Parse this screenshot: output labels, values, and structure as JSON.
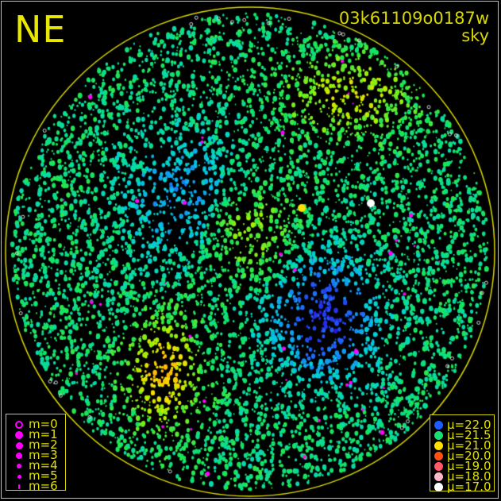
{
  "header": {
    "direction_label": "NE",
    "frame_id": "03k61109o0187w",
    "mode": "sky"
  },
  "colors": {
    "frame": "#d8d800",
    "text": "#e0e000",
    "star_marker": "#ff00ff"
  },
  "magnitude_legend": [
    {
      "label": "m=0",
      "style": "open"
    },
    {
      "label": "m=1"
    },
    {
      "label": "m=2"
    },
    {
      "label": "m=3"
    },
    {
      "label": "m=4"
    },
    {
      "label": "m=5"
    },
    {
      "label": "m=6"
    }
  ],
  "brightness_legend": [
    {
      "label": "μ=22.0",
      "color": "#1e5cff"
    },
    {
      "label": "μ=21.5",
      "color": "#18e070"
    },
    {
      "label": "μ=21.0",
      "color": "#ffe000"
    },
    {
      "label": "μ=20.0",
      "color": "#ff5010"
    },
    {
      "label": "μ=19.0",
      "color": "#ff5a6a"
    },
    {
      "label": "μ=18.0",
      "color": "#ffb8c8"
    },
    {
      "label": "μ=17.0",
      "color": "#ffffff"
    }
  ]
}
